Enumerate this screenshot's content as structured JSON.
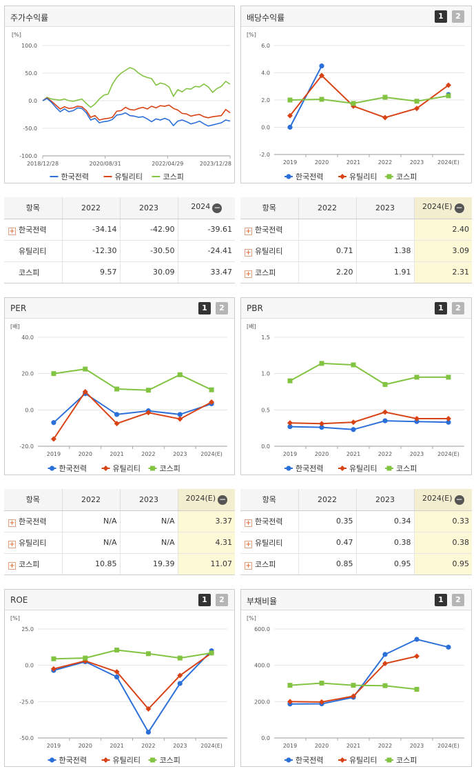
{
  "legend": [
    "한국전력",
    "유틸리티",
    "코스피"
  ],
  "colors": {
    "kepco": "#2b6fd8",
    "util": "#d84315",
    "kospi": "#82c341"
  },
  "panels": {
    "price": {
      "title": "주가수익률",
      "unit": "[%]",
      "chart_data": {
        "type": "line",
        "title": "주가수익률",
        "ylabel": "[%]",
        "y_ticks": [
          "100.0",
          "50.0",
          "0.0",
          "-50.0",
          "-100.0"
        ],
        "x_ticks": [
          "2018/12/28",
          "2020/08/31",
          "2022/04/29",
          "2023/12/28"
        ],
        "ylim": [
          -100,
          100
        ],
        "series": [
          {
            "name": "한국전력",
            "values": [
              0,
              4,
              -3,
              -12,
              -20,
              -15,
              -20,
              -18,
              -13,
              -14,
              -22,
              -35,
              -32,
              -40,
              -38,
              -37,
              -34,
              -26,
              -25,
              -22,
              -27,
              -28,
              -30,
              -29,
              -33,
              -38,
              -33,
              -35,
              -32,
              -35,
              -45,
              -37,
              -35,
              -38,
              -42,
              -40,
              -37,
              -42,
              -46,
              -44,
              -42,
              -40,
              -35,
              -37
            ]
          },
          {
            "name": "유틸리티",
            "values": [
              0,
              5,
              -1,
              -8,
              -15,
              -11,
              -14,
              -13,
              -10,
              -11,
              -18,
              -30,
              -27,
              -35,
              -33,
              -32,
              -30,
              -19,
              -18,
              -12,
              -16,
              -17,
              -14,
              -12,
              -15,
              -10,
              -13,
              -9,
              -10,
              -8,
              -14,
              -17,
              -23,
              -24,
              -28,
              -26,
              -25,
              -29,
              -31,
              -29,
              -28,
              -27,
              -16,
              -22
            ]
          },
          {
            "name": "코스피",
            "values": [
              0,
              6,
              3,
              2,
              1,
              3,
              0,
              -1,
              1,
              3,
              -5,
              -12,
              -6,
              3,
              10,
              12,
              30,
              42,
              50,
              55,
              60,
              57,
              50,
              45,
              42,
              40,
              28,
              32,
              30,
              25,
              8,
              20,
              16,
              22,
              21,
              26,
              25,
              30,
              25,
              15,
              22,
              26,
              35,
              30
            ]
          }
        ]
      }
    },
    "dividend": {
      "title": "배당수익률",
      "unit": "[%]",
      "btn1": "1",
      "btn2": "2",
      "chart_data": {
        "type": "line",
        "title": "배당수익률",
        "ylabel": "[%]",
        "categories": [
          "2019",
          "2020",
          "2021",
          "2022",
          "2023",
          "2024(E)"
        ],
        "y_ticks": [
          "6.0",
          "4.0",
          "2.0",
          "0.0",
          "-2.0"
        ],
        "ylim": [
          -2,
          6
        ],
        "series": [
          {
            "name": "한국전력",
            "values": [
              0.0,
              4.5,
              null,
              null,
              null,
              2.4
            ]
          },
          {
            "name": "유틸리티",
            "values": [
              0.85,
              3.8,
              1.55,
              0.71,
              1.38,
              3.09
            ]
          },
          {
            "name": "코스피",
            "values": [
              2.0,
              2.05,
              1.75,
              2.2,
              1.91,
              2.31
            ]
          }
        ]
      }
    },
    "per": {
      "title": "PER",
      "unit": "[배]",
      "btn1": "1",
      "btn2": "2",
      "chart_data": {
        "type": "line",
        "title": "PER",
        "ylabel": "[배]",
        "categories": [
          "2019",
          "2020",
          "2021",
          "2022",
          "2023",
          "2024(E)"
        ],
        "y_ticks": [
          "40.0",
          "20.0",
          "0.0",
          "-20.0"
        ],
        "ylim": [
          -20,
          40
        ],
        "series": [
          {
            "name": "한국전력",
            "values": [
              -7.0,
              9.0,
              -2.5,
              -0.5,
              -2.5,
              3.37
            ]
          },
          {
            "name": "유틸리티",
            "values": [
              -16.0,
              10.0,
              -7.5,
              -1.5,
              -5.0,
              4.31
            ]
          },
          {
            "name": "코스피",
            "values": [
              20.0,
              22.5,
              11.5,
              10.85,
              19.39,
              11.07
            ]
          }
        ]
      }
    },
    "pbr": {
      "title": "PBR",
      "unit": "[배]",
      "btn1": "1",
      "btn2": "2",
      "chart_data": {
        "type": "line",
        "title": "PBR",
        "ylabel": "[배]",
        "categories": [
          "2019",
          "2020",
          "2021",
          "2022",
          "2023",
          "2024(E)"
        ],
        "y_ticks": [
          "1.5",
          "1.0",
          "0.5",
          "0.0"
        ],
        "ylim": [
          0,
          1.5
        ],
        "series": [
          {
            "name": "한국전력",
            "values": [
              0.27,
              0.26,
              0.23,
              0.35,
              0.34,
              0.33
            ]
          },
          {
            "name": "유틸리티",
            "values": [
              0.32,
              0.31,
              0.33,
              0.47,
              0.38,
              0.38
            ]
          },
          {
            "name": "코스피",
            "values": [
              0.9,
              1.14,
              1.12,
              0.85,
              0.95,
              0.95
            ]
          }
        ]
      }
    },
    "roe": {
      "title": "ROE",
      "unit": "[%]",
      "btn1": "1",
      "btn2": "2",
      "chart_data": {
        "type": "line",
        "title": "ROE",
        "ylabel": "[%]",
        "categories": [
          "2019",
          "2020",
          "2021",
          "2022",
          "2023",
          "2024(E)"
        ],
        "y_ticks": [
          "25.0",
          "0.0",
          "-25.0",
          "-50.0"
        ],
        "ylim": [
          -50,
          25
        ],
        "series": [
          {
            "name": "한국전력",
            "values": [
              -3.5,
              2.5,
              -8.0,
              -46.0,
              -12.5,
              10.0
            ]
          },
          {
            "name": "유틸리티",
            "values": [
              -2.5,
              3.0,
              -4.5,
              -30.0,
              -7.0,
              8.5
            ]
          },
          {
            "name": "코스피",
            "values": [
              4.5,
              5.0,
              10.5,
              8.0,
              5.0,
              8.5
            ]
          }
        ]
      }
    },
    "debt": {
      "title": "부채비율",
      "unit": "[%]",
      "btn1": "1",
      "btn2": "2",
      "chart_data": {
        "type": "line",
        "title": "부채비율",
        "ylabel": "[%]",
        "categories": [
          "2019",
          "2020",
          "2021",
          "2022",
          "2023",
          "2024(E)"
        ],
        "y_ticks": [
          "600.0",
          "400.0",
          "200.0",
          "0.0"
        ],
        "ylim": [
          0,
          600
        ],
        "series": [
          {
            "name": "한국전력",
            "values": [
              187,
              188,
              224,
              460,
              543,
              500
            ]
          },
          {
            "name": "유틸리티",
            "values": [
              200,
              198,
              230,
              410,
              450,
              null
            ]
          },
          {
            "name": "코스피",
            "values": [
              290,
              302,
              290,
              288,
              268,
              null
            ]
          }
        ]
      }
    }
  },
  "tables": {
    "price": {
      "header": [
        "항목",
        "2022",
        "2023",
        "2024"
      ],
      "minus": "−",
      "rows": [
        {
          "label": "한국전력",
          "plus": "+",
          "v": [
            "-34.14",
            "-42.90",
            "-39.61"
          ]
        },
        {
          "label": "유틸리티",
          "plus": "",
          "v": [
            "-12.30",
            "-30.50",
            "-24.41"
          ]
        },
        {
          "label": "코스피",
          "plus": "",
          "v": [
            "9.57",
            "30.09",
            "33.47"
          ]
        }
      ]
    },
    "dividend": {
      "header": [
        "항목",
        "2022",
        "2023",
        "2024(E)"
      ],
      "minus": "−",
      "rows": [
        {
          "label": "한국전력",
          "plus": "+",
          "v": [
            "",
            "",
            "2.40"
          ]
        },
        {
          "label": "유틸리티",
          "plus": "+",
          "v": [
            "0.71",
            "1.38",
            "3.09"
          ]
        },
        {
          "label": "코스피",
          "plus": "+",
          "v": [
            "2.20",
            "1.91",
            "2.31"
          ]
        }
      ]
    },
    "per": {
      "header": [
        "항목",
        "2022",
        "2023",
        "2024(E)"
      ],
      "minus": "−",
      "rows": [
        {
          "label": "한국전력",
          "plus": "+",
          "v": [
            "N/A",
            "N/A",
            "3.37"
          ]
        },
        {
          "label": "유틸리티",
          "plus": "+",
          "v": [
            "N/A",
            "N/A",
            "4.31"
          ]
        },
        {
          "label": "코스피",
          "plus": "+",
          "v": [
            "10.85",
            "19.39",
            "11.07"
          ]
        }
      ]
    },
    "pbr": {
      "header": [
        "항목",
        "2022",
        "2023",
        "2024(E)"
      ],
      "minus": "−",
      "rows": [
        {
          "label": "한국전력",
          "plus": "+",
          "v": [
            "0.35",
            "0.34",
            "0.33"
          ]
        },
        {
          "label": "유틸리티",
          "plus": "+",
          "v": [
            "0.47",
            "0.38",
            "0.38"
          ]
        },
        {
          "label": "코스피",
          "plus": "+",
          "v": [
            "0.85",
            "0.95",
            "0.95"
          ]
        }
      ]
    }
  }
}
